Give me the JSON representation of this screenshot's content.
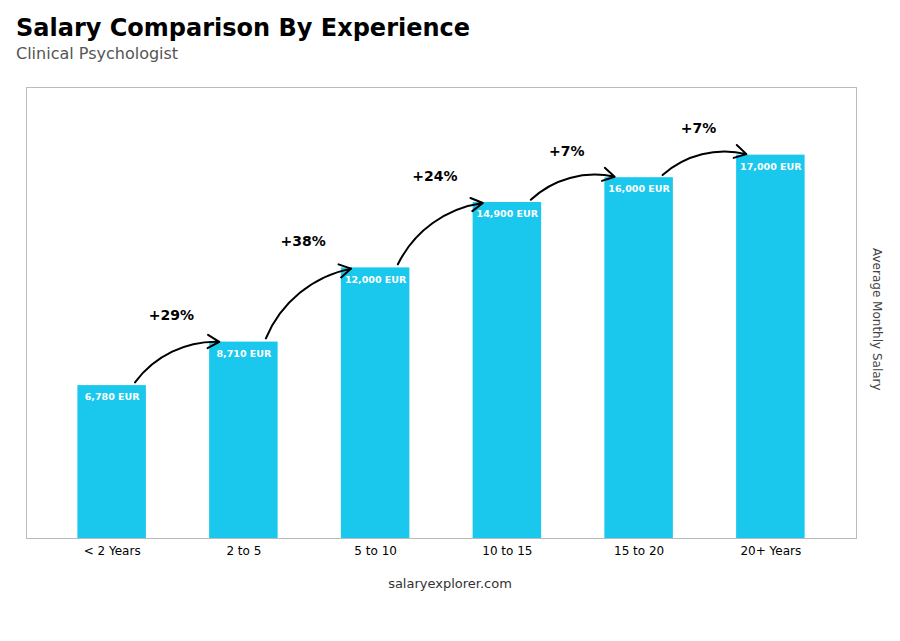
{
  "chart_data": {
    "type": "bar",
    "title": "Salary Comparison By Experience",
    "subtitle": "Clinical Psychologist",
    "ylabel": "Average Monthly Salary",
    "categories": [
      "< 2 Years",
      "2 to 5",
      "5 to 10",
      "10 to 15",
      "15 to 20",
      "20+ Years"
    ],
    "values": [
      6780,
      8710,
      12000,
      14900,
      16000,
      17000
    ],
    "value_labels": [
      "6,780 EUR",
      "8,710 EUR",
      "12,000 EUR",
      "14,900 EUR",
      "16,000 EUR",
      "17,000 EUR"
    ],
    "data_labels": true,
    "color": "#1ac8ed",
    "ylim": [
      0,
      20000
    ],
    "tick_labels": "x",
    "grid": false,
    "annotations": [
      {
        "text": "+29%",
        "from": "< 2 Years",
        "to": "2 to 5"
      },
      {
        "text": "+38%",
        "from": "2 to 5",
        "to": "5 to 10"
      },
      {
        "text": "+24%",
        "from": "5 to 10",
        "to": "10 to 15"
      },
      {
        "text": "+7%",
        "from": "10 to 15",
        "to": "15 to 20"
      },
      {
        "text": "+7%",
        "from": "15 to 20",
        "to": "20+ Years"
      }
    ],
    "caption": "salaryexplorer.com"
  }
}
